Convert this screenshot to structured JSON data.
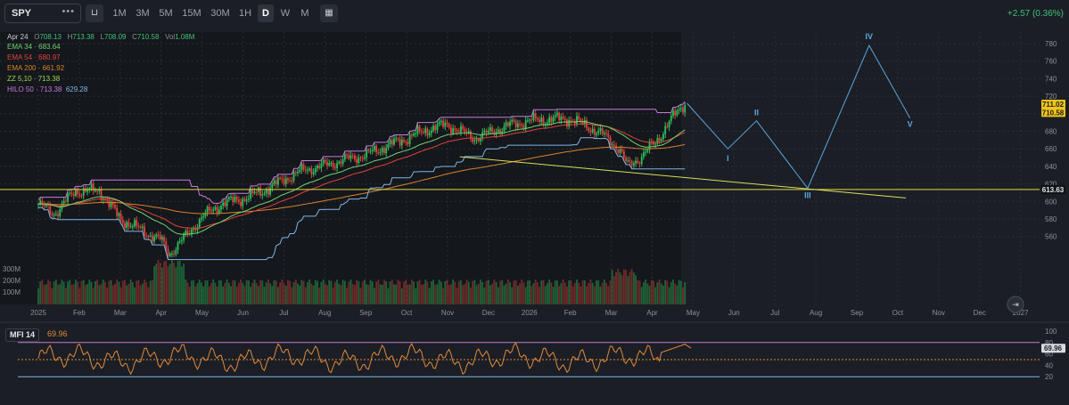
{
  "toolbar": {
    "symbol": "SPY",
    "more_glyph": "•••",
    "chart_type_icon": "candle-icon",
    "intervals": [
      "1M",
      "3M",
      "5M",
      "15M",
      "30M",
      "1H",
      "D",
      "W",
      "M"
    ],
    "active_interval": "D",
    "calendar_icon": "calendar-icon",
    "change": "+2.57 (0.36%)"
  },
  "ohlc": {
    "date": "Apr 24",
    "o_label": "O",
    "o": "708.13",
    "h_label": "H",
    "h": "713.38",
    "l_label": "L",
    "l": "708.09",
    "c_label": "C",
    "c": "710.58",
    "vol_label": "Vol",
    "vol": "1.08M"
  },
  "indicators": [
    {
      "label": "EMA 34",
      "value": "683.64",
      "color": "#6fd36f"
    },
    {
      "label": "EMA 54",
      "value": "680.97",
      "color": "#e0443a"
    },
    {
      "label": "EMA 200",
      "value": "661.92",
      "color": "#d9822b"
    },
    {
      "label": "ZZ 5,10",
      "value": "713.38",
      "color": "#9ad64a"
    },
    {
      "label": "HILO 50",
      "value": "713.38",
      "value2": "629.28",
      "color": "#c77ad8",
      "color2": "#7fb6e6"
    }
  ],
  "price_axis": {
    "ticks": [
      "780",
      "760",
      "740",
      "720",
      "700",
      "680",
      "660",
      "640",
      "620",
      "600",
      "580",
      "560"
    ],
    "badge_high": "711.02",
    "badge_close": "710.58",
    "badge_level": "613.63"
  },
  "volume_axis": {
    "ticks": [
      "300M",
      "200M",
      "100M"
    ]
  },
  "time_axis": [
    "2025",
    "Feb",
    "Mar",
    "Apr",
    "May",
    "Jun",
    "Jul",
    "Aug",
    "Sep",
    "Oct",
    "Nov",
    "Dec",
    "2026",
    "Feb",
    "Mar",
    "Apr",
    "May",
    "Jun",
    "Jul",
    "Aug",
    "Sep",
    "Oct",
    "Nov",
    "Dec",
    "2027"
  ],
  "waves": [
    "I",
    "II",
    "III",
    "IV",
    "V"
  ],
  "mfi": {
    "label": "MFI 14",
    "value": "69.96",
    "ticks": [
      "100",
      "80",
      "60",
      "40",
      "20"
    ],
    "badge": "69.96"
  },
  "colors": {
    "bg": "#1b1e25",
    "history_bg": "#14171c",
    "up": "#2fbf5c",
    "down": "#e0443a",
    "ema34": "#6fd36f",
    "ema54": "#e0443a",
    "ema200": "#d9822b",
    "hilo_high": "#c77ad8",
    "hilo_low": "#7fb6e6",
    "trendline": "#d6e05a",
    "level_line": "#e6d84a",
    "forecast": "#5aa7e0",
    "mfi_line": "#e08a3c"
  },
  "chart_data": {
    "type": "line",
    "symbol": "SPY",
    "interval": "D",
    "x": [
      "2025-01",
      "2025-02",
      "2025-03",
      "2025-04",
      "2025-05",
      "2025-06",
      "2025-07",
      "2025-08",
      "2025-09",
      "2025-10",
      "2025-11",
      "2025-12",
      "2026-01",
      "2026-02",
      "2026-03",
      "2026-04"
    ],
    "series": [
      {
        "name": "SPY",
        "values": [
          595,
          605,
          570,
          545,
          585,
          605,
          625,
          640,
          655,
          672,
          680,
          684,
          690,
          688,
          652,
          710.58
        ]
      },
      {
        "name": "EMA 34",
        "values": [
          595,
          600,
          585,
          565,
          570,
          592,
          612,
          630,
          645,
          662,
          673,
          678,
          684,
          685,
          670,
          683.64
        ]
      },
      {
        "name": "EMA 54",
        "values": [
          592,
          597,
          588,
          572,
          572,
          586,
          604,
          622,
          638,
          654,
          666,
          672,
          679,
          681,
          672,
          680.97
        ]
      },
      {
        "name": "EMA 200",
        "values": [
          565,
          571,
          575,
          574,
          576,
          584,
          594,
          604,
          613,
          623,
          633,
          641,
          649,
          654,
          658,
          661.92
        ]
      }
    ],
    "ylim": [
      550,
      790
    ],
    "levels": [
      613.63
    ],
    "forecast_waves": [
      {
        "label": "I",
        "value": 660
      },
      {
        "label": "II",
        "value": 692
      },
      {
        "label": "III",
        "value": 615
      },
      {
        "label": "IV",
        "value": 778
      },
      {
        "label": "V",
        "value": 695
      }
    ],
    "forecast_x": [
      "2026-05",
      "2026-06",
      "2026-08",
      "2026-09",
      "2026-10"
    ],
    "mfi": {
      "name": "MFI 14",
      "last": 69.96,
      "ylim": [
        0,
        100
      ],
      "bands": [
        20,
        80
      ]
    }
  }
}
